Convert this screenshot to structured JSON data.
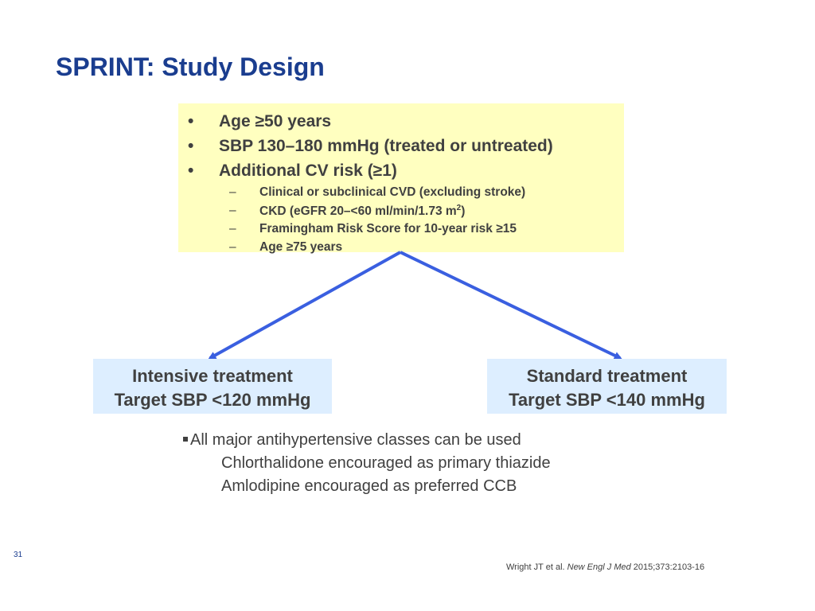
{
  "slide": {
    "title": "SPRINT: Study Design",
    "number": "31"
  },
  "criteria": {
    "bullet_marker": "•",
    "sub_marker": "–",
    "items": [
      "Age ≥50 years",
      "SBP 130–180 mmHg (treated or untreated)",
      "Additional CV risk (≥1)"
    ],
    "sub_items": [
      "Clinical or subclinical CVD (excluding stroke)",
      {
        "text": "CKD (eGFR 20–<60 ml/min/1.73 m",
        "superscript": "2",
        "after": ")"
      },
      "Framingham Risk Score for 10-year risk ≥15",
      "Age ≥75 years"
    ]
  },
  "arms": {
    "intensive": {
      "name": "Intensive treatment",
      "target": "Target SBP <120 mmHg"
    },
    "standard": {
      "name": "Standard treatment",
      "target": "Target SBP <140 mmHg"
    }
  },
  "notes": {
    "main": "All major antihypertensive classes can be used",
    "details": [
      "Chlorthalidone encouraged as primary thiazide",
      "Amlodipine encouraged as preferred CCB"
    ]
  },
  "citation": {
    "authors": "Wright JT et al. ",
    "journal": "New Engl J Med",
    "ref": " 2015;373:2103-16"
  },
  "colors": {
    "title": "#1a3d8f",
    "criteria_box": "#ffffc0",
    "arm_box": "#ddeeff",
    "arrow": "#3a5fe0",
    "text": "#404040"
  }
}
